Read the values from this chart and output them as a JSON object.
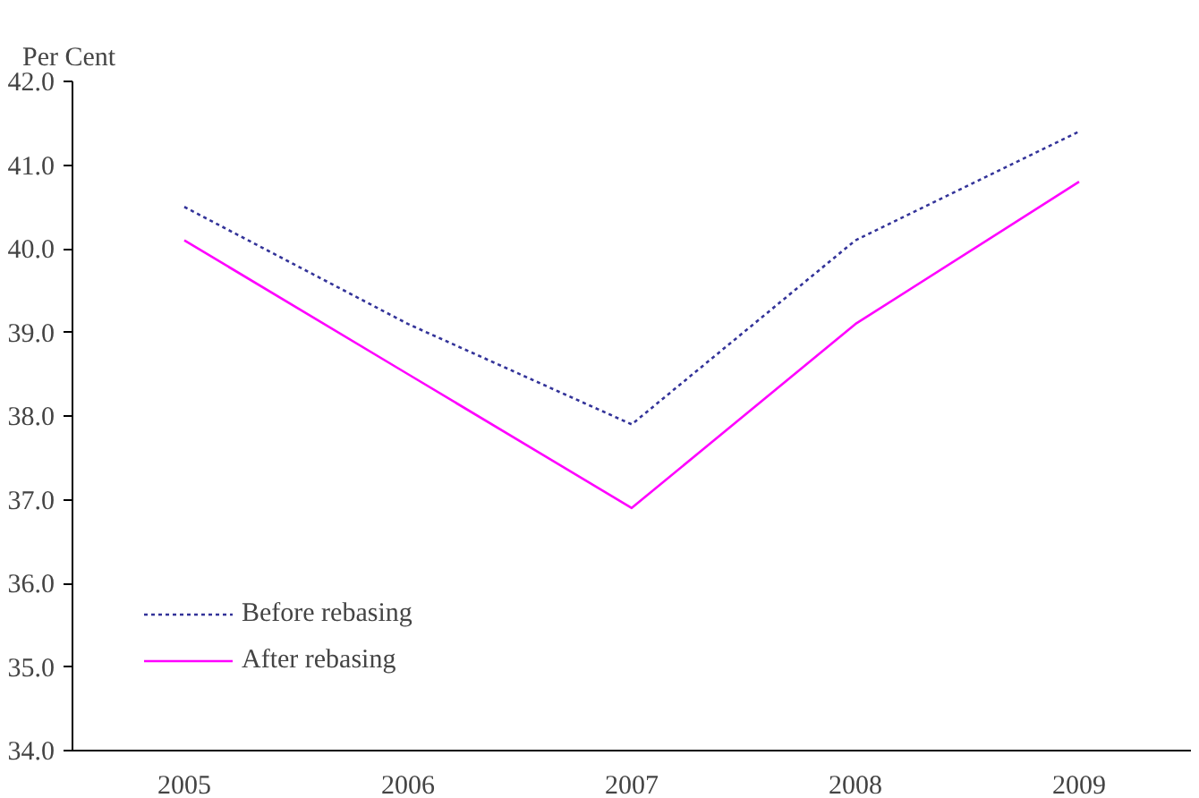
{
  "chart_data": {
    "type": "line",
    "ylabel": "Per Cent",
    "categories": [
      "2005",
      "2006",
      "2007",
      "2008",
      "2009"
    ],
    "series": [
      {
        "name": "Before rebasing",
        "color": "#333399",
        "line_style": "dotted",
        "values": [
          40.5,
          39.1,
          37.9,
          40.1,
          41.4
        ]
      },
      {
        "name": "After rebasing",
        "color": "#ff00ff",
        "line_style": "solid",
        "values": [
          40.1,
          38.5,
          36.9,
          39.1,
          40.8
        ]
      }
    ],
    "ylim": [
      34.0,
      42.0
    ],
    "yticks": [
      {
        "value": 34,
        "label": "34.0"
      },
      {
        "value": 35,
        "label": "35.0"
      },
      {
        "value": 36,
        "label": "36.0"
      },
      {
        "value": 37,
        "label": "37.0"
      },
      {
        "value": 38,
        "label": "38.0"
      },
      {
        "value": 39,
        "label": "39.0"
      },
      {
        "value": 40,
        "label": "40.0"
      },
      {
        "value": 41,
        "label": "41.0"
      },
      {
        "value": 42,
        "label": "42.0"
      }
    ],
    "grid": false,
    "legend": "bottom left",
    "marker": "none"
  }
}
